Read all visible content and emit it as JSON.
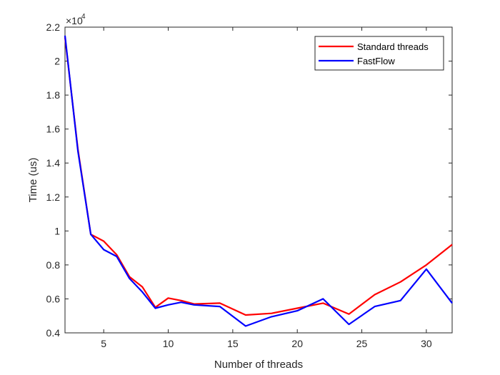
{
  "chart_data": {
    "type": "line",
    "xlabel": "Number of threads",
    "ylabel": "Time (us)",
    "exponent_label": "×10",
    "exponent_power": "4",
    "xlim": [
      2,
      32
    ],
    "ylim": [
      0.4,
      2.2
    ],
    "y_scale_factor": 10000,
    "xticks": [
      5,
      10,
      15,
      20,
      25,
      30
    ],
    "yticks": [
      0.4,
      0.6,
      0.8,
      1,
      1.2,
      1.4,
      1.6,
      1.8,
      2,
      2.2
    ],
    "grid": false,
    "legend_position": "top-right",
    "series": [
      {
        "name": "Standard threads",
        "color": "#ff0000",
        "x": [
          2,
          3,
          4,
          5,
          6,
          7,
          8,
          9,
          10,
          11,
          12,
          14,
          16,
          18,
          20,
          22,
          24,
          26,
          28,
          30,
          32
        ],
        "y": [
          2.14,
          1.48,
          0.98,
          0.94,
          0.86,
          0.73,
          0.67,
          0.55,
          0.605,
          0.59,
          0.57,
          0.575,
          0.505,
          0.515,
          0.545,
          0.575,
          0.51,
          0.625,
          0.7,
          0.8,
          0.92
        ]
      },
      {
        "name": "FastFlow",
        "color": "#0000ff",
        "x": [
          2,
          3,
          4,
          5,
          6,
          7,
          8,
          9,
          10,
          11,
          12,
          14,
          16,
          18,
          20,
          22,
          24,
          26,
          28,
          30,
          32
        ],
        "y": [
          2.15,
          1.47,
          0.98,
          0.89,
          0.85,
          0.72,
          0.64,
          0.545,
          0.565,
          0.58,
          0.565,
          0.555,
          0.44,
          0.495,
          0.53,
          0.6,
          0.45,
          0.555,
          0.59,
          0.775,
          0.575
        ]
      }
    ]
  }
}
